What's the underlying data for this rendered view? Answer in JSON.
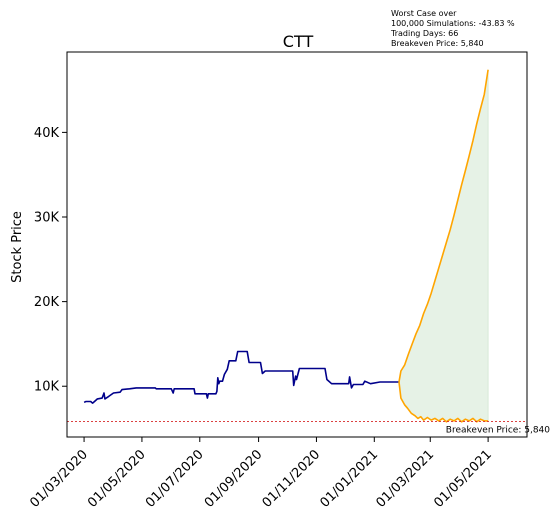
{
  "chart_data": {
    "type": "line",
    "title": "CTT",
    "ylabel": "Stock Price",
    "xlabel": "",
    "ylim": [
      4000,
      49500
    ],
    "xlim": [
      "2020-02-12",
      "2021-06-11"
    ],
    "y_ticks": [
      {
        "value": 10000,
        "label": "10K"
      },
      {
        "value": 20000,
        "label": "20K"
      },
      {
        "value": 30000,
        "label": "30K"
      },
      {
        "value": 40000,
        "label": "40K"
      }
    ],
    "x_ticks": [
      {
        "date": "2020-03-01",
        "label": "01/03/2020"
      },
      {
        "date": "2020-05-01",
        "label": "01/05/2020"
      },
      {
        "date": "2020-07-01",
        "label": "01/07/2020"
      },
      {
        "date": "2020-09-01",
        "label": "01/09/2020"
      },
      {
        "date": "2020-11-01",
        "label": "01/11/2020"
      },
      {
        "date": "2021-01-01",
        "label": "01/01/2021"
      },
      {
        "date": "2021-03-01",
        "label": "01/03/2021"
      },
      {
        "date": "2021-05-01",
        "label": "01/05/2021"
      }
    ],
    "annotation": [
      "Worst Case over",
      "100,000 Simulations: -43.83 %",
      "Trading Days: 66",
      "Breakeven Price: 5,840"
    ],
    "breakeven": {
      "value": 5840,
      "label": "Breakeven Price: 5,840"
    },
    "colors": {
      "historical": "#00008b",
      "projection": "#ffa500",
      "fill": "#e3f1e3",
      "breakeven": "#d62728"
    },
    "series": [
      {
        "role": "historical",
        "points": [
          [
            "2020-03-01",
            8100
          ],
          [
            "2020-03-03",
            8200
          ],
          [
            "2020-03-08",
            8200
          ],
          [
            "2020-03-10",
            8000
          ],
          [
            "2020-03-12",
            8200
          ],
          [
            "2020-03-15",
            8500
          ],
          [
            "2020-03-20",
            8600
          ],
          [
            "2020-03-22",
            9200
          ],
          [
            "2020-03-23",
            8500
          ],
          [
            "2020-03-27",
            8800
          ],
          [
            "2020-04-01",
            9200
          ],
          [
            "2020-04-08",
            9300
          ],
          [
            "2020-04-10",
            9600
          ],
          [
            "2020-04-18",
            9700
          ],
          [
            "2020-04-25",
            9800
          ],
          [
            "2020-05-15",
            9800
          ],
          [
            "2020-05-16",
            9700
          ],
          [
            "2020-06-01",
            9700
          ],
          [
            "2020-06-03",
            9200
          ],
          [
            "2020-06-04",
            9700
          ],
          [
            "2020-06-25",
            9700
          ],
          [
            "2020-06-26",
            9100
          ],
          [
            "2020-07-08",
            9100
          ],
          [
            "2020-07-09",
            8600
          ],
          [
            "2020-07-10",
            9100
          ],
          [
            "2020-07-18",
            9100
          ],
          [
            "2020-07-19",
            9400
          ],
          [
            "2020-07-20",
            11000
          ],
          [
            "2020-07-21",
            10300
          ],
          [
            "2020-07-22",
            10600
          ],
          [
            "2020-07-25",
            10600
          ],
          [
            "2020-07-27",
            11400
          ],
          [
            "2020-07-30",
            12000
          ],
          [
            "2020-08-01",
            13000
          ],
          [
            "2020-08-08",
            13000
          ],
          [
            "2020-08-10",
            14100
          ],
          [
            "2020-08-20",
            14100
          ],
          [
            "2020-08-22",
            12800
          ],
          [
            "2020-09-03",
            12800
          ],
          [
            "2020-09-05",
            11500
          ],
          [
            "2020-09-08",
            11800
          ],
          [
            "2020-10-07",
            11800
          ],
          [
            "2020-10-08",
            10100
          ],
          [
            "2020-10-10",
            11200
          ],
          [
            "2020-10-11",
            10800
          ],
          [
            "2020-10-14",
            12100
          ],
          [
            "2020-11-10",
            12100
          ],
          [
            "2020-11-12",
            10800
          ],
          [
            "2020-11-17",
            10300
          ],
          [
            "2020-12-05",
            10300
          ],
          [
            "2020-12-06",
            11100
          ],
          [
            "2020-12-08",
            9800
          ],
          [
            "2020-12-10",
            10200
          ],
          [
            "2020-12-20",
            10200
          ],
          [
            "2020-12-22",
            10600
          ],
          [
            "2020-12-28",
            10300
          ],
          [
            "2021-01-07",
            10500
          ],
          [
            "2021-01-27",
            10500
          ]
        ]
      },
      {
        "role": "projection-best",
        "points": [
          [
            "2021-01-27",
            10500
          ],
          [
            "2021-01-29",
            11800
          ],
          [
            "2021-02-02",
            12500
          ],
          [
            "2021-02-06",
            13800
          ],
          [
            "2021-02-10",
            15000
          ],
          [
            "2021-02-14",
            16200
          ],
          [
            "2021-02-18",
            17200
          ],
          [
            "2021-02-22",
            18600
          ],
          [
            "2021-02-26",
            19700
          ],
          [
            "2021-03-02",
            21000
          ],
          [
            "2021-03-06",
            22500
          ],
          [
            "2021-03-10",
            24000
          ],
          [
            "2021-03-14",
            25500
          ],
          [
            "2021-03-18",
            27000
          ],
          [
            "2021-03-22",
            28500
          ],
          [
            "2021-03-26",
            30200
          ],
          [
            "2021-03-30",
            32000
          ],
          [
            "2021-04-03",
            33800
          ],
          [
            "2021-04-07",
            35500
          ],
          [
            "2021-04-11",
            37200
          ],
          [
            "2021-04-15",
            39000
          ],
          [
            "2021-04-19",
            41000
          ],
          [
            "2021-04-23",
            42800
          ],
          [
            "2021-04-27",
            44500
          ],
          [
            "2021-05-01",
            47400
          ]
        ]
      },
      {
        "role": "projection-worst",
        "points": [
          [
            "2021-01-27",
            10500
          ],
          [
            "2021-01-29",
            8600
          ],
          [
            "2021-02-02",
            7800
          ],
          [
            "2021-02-05",
            7400
          ],
          [
            "2021-02-09",
            6800
          ],
          [
            "2021-02-13",
            6500
          ],
          [
            "2021-02-16",
            6200
          ],
          [
            "2021-02-19",
            6400
          ],
          [
            "2021-02-22",
            6000
          ],
          [
            "2021-02-26",
            6300
          ],
          [
            "2021-03-02",
            6000
          ],
          [
            "2021-03-06",
            6200
          ],
          [
            "2021-03-10",
            5900
          ],
          [
            "2021-03-14",
            6200
          ],
          [
            "2021-03-18",
            5800
          ],
          [
            "2021-03-22",
            6100
          ],
          [
            "2021-03-26",
            5900
          ],
          [
            "2021-03-30",
            6200
          ],
          [
            "2021-04-03",
            5800
          ],
          [
            "2021-04-07",
            6100
          ],
          [
            "2021-04-11",
            5900
          ],
          [
            "2021-04-15",
            6200
          ],
          [
            "2021-04-19",
            5800
          ],
          [
            "2021-04-23",
            6100
          ],
          [
            "2021-04-27",
            5900
          ],
          [
            "2021-05-01",
            5900
          ]
        ]
      }
    ]
  }
}
